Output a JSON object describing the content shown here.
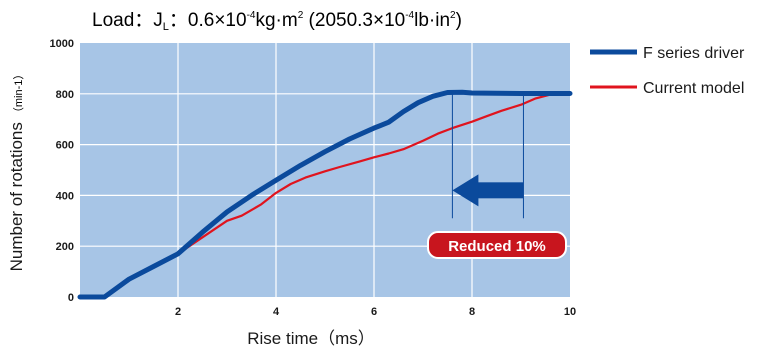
{
  "title": {
    "prefix": "Load：J",
    "subscript": "L",
    "mid": "：0.6×10",
    "exp1": "-4",
    "unit1": "kg·m",
    "exp2": "2",
    "paren_open": " (2050.3×10",
    "exp3": "-4",
    "unit2": "lb·in",
    "exp4": "2",
    "paren_close": ")"
  },
  "chart_data": {
    "type": "line",
    "xlabel": "Rise time（ms）",
    "ylabel": "Number of rotations",
    "ylabel_unit": "（min-1）",
    "xlim": [
      0,
      10
    ],
    "ylim": [
      0,
      1000
    ],
    "x_ticks": [
      "2",
      "4",
      "6",
      "8",
      "10"
    ],
    "y_ticks": [
      "0",
      "200",
      "400",
      "600",
      "800",
      "1000"
    ],
    "grid": true,
    "legend_position": "right",
    "plot_background": "#a7c5e6",
    "series": [
      {
        "name": "F series driver",
        "color": "#0b4a9c",
        "x": [
          0,
          0.5,
          1.0,
          1.5,
          2.0,
          2.5,
          3.0,
          3.5,
          4.0,
          4.5,
          5.0,
          5.5,
          6.0,
          6.3,
          6.6,
          6.9,
          7.2,
          7.5,
          7.8,
          8.0,
          8.5,
          9.0,
          9.5,
          10.0
        ],
        "y": [
          0,
          0,
          70,
          120,
          170,
          255,
          335,
          400,
          460,
          518,
          572,
          622,
          665,
          688,
          730,
          765,
          790,
          805,
          806,
          803,
          802,
          801,
          801,
          801
        ]
      },
      {
        "name": "Current model",
        "color": "#e0141e",
        "x": [
          2.0,
          2.5,
          3.0,
          3.3,
          3.7,
          4.0,
          4.3,
          4.6,
          5.0,
          5.3,
          5.7,
          6.0,
          6.3,
          6.6,
          7.0,
          7.3,
          7.6,
          8.0,
          8.3,
          8.6,
          9.0,
          9.3,
          9.6,
          10.0
        ],
        "y": [
          170,
          235,
          300,
          320,
          365,
          410,
          445,
          470,
          495,
          512,
          533,
          550,
          565,
          582,
          615,
          643,
          665,
          690,
          712,
          733,
          757,
          782,
          797,
          800
        ]
      }
    ],
    "annotation": {
      "text": "Reduced 10%",
      "from_x": 9.05,
      "to_x": 7.6,
      "arrow_y": 420,
      "marker_y_top": 810,
      "marker_y_bottom": 310,
      "arrow_color": "#0b4a9c",
      "badge_color": "#c8151e"
    }
  }
}
